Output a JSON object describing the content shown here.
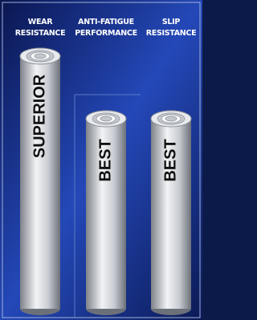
{
  "header": {
    "columns": [
      {
        "lines": [
          "WEAR",
          "RESISTANCE"
        ]
      },
      {
        "lines": [
          "ANTI-FATIGUE",
          "PERFORMANCE"
        ]
      },
      {
        "lines": [
          "SLIP",
          "RESISTANCE"
        ]
      }
    ]
  },
  "cylinders": [
    {
      "label": "SUPERIOR"
    },
    {
      "label": "BEST"
    },
    {
      "label": "BEST"
    }
  ]
}
